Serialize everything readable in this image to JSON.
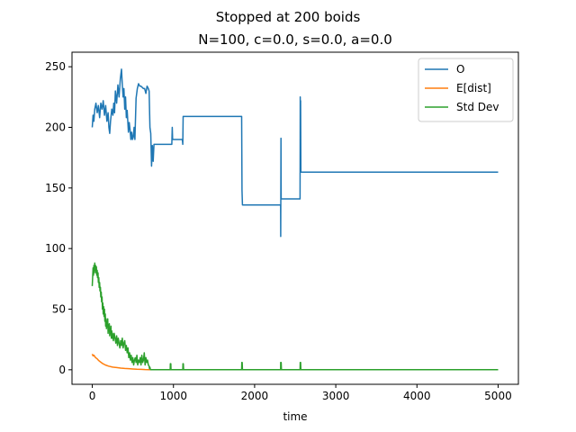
{
  "figure": {
    "suptitle": "Stopped at 200 boids",
    "title": "N=100, c=0.0, s=0.0, a=0.0"
  },
  "chart_data": {
    "type": "line",
    "title": "N=100, c=0.0, s=0.0, a=0.0",
    "xlabel": "time",
    "ylabel": "",
    "xlim": [
      -250,
      5250
    ],
    "ylim": [
      -12,
      262
    ],
    "xticks": [
      0,
      1000,
      2000,
      3000,
      4000,
      5000
    ],
    "yticks": [
      0,
      50,
      100,
      150,
      200,
      250
    ],
    "grid": false,
    "legend_position": "top-right",
    "series": [
      {
        "name": "O",
        "color": "#1f77b4",
        "x": [
          0,
          10,
          20,
          30,
          45,
          60,
          75,
          90,
          105,
          120,
          135,
          150,
          165,
          180,
          195,
          205,
          215,
          225,
          240,
          255,
          265,
          275,
          285,
          300,
          315,
          330,
          345,
          360,
          370,
          380,
          390,
          400,
          410,
          420,
          430,
          445,
          455,
          465,
          475,
          485,
          495,
          505,
          515,
          525,
          540,
          555,
          570,
          585,
          600,
          615,
          630,
          645,
          660,
          675,
          690,
          700,
          710,
          720,
          730,
          740,
          750,
          760,
          770,
          780,
          790,
          800,
          980,
          985,
          990,
          995,
          1000,
          1110,
          1115,
          1120,
          1125,
          1130,
          1840,
          1845,
          1850,
          1855,
          1860,
          2320,
          2322,
          2325,
          2327,
          2330,
          2340,
          2345,
          2560,
          2562,
          2565,
          2567,
          2570,
          2575,
          2580,
          5000
        ],
        "y": [
          200,
          210,
          205,
          215,
          220,
          212,
          218,
          208,
          220,
          215,
          222,
          210,
          218,
          205,
          212,
          200,
          195,
          205,
          215,
          210,
          220,
          212,
          230,
          220,
          235,
          225,
          240,
          248,
          235,
          225,
          232,
          215,
          225,
          208,
          214,
          196,
          204,
          198,
          190,
          196,
          190,
          192,
          200,
          190,
          224,
          232,
          236,
          234,
          234,
          233,
          232,
          232,
          228,
          234,
          232,
          230,
          200,
          195,
          168,
          185,
          172,
          186,
          186,
          186,
          186,
          186,
          186,
          200,
          190,
          190,
          190,
          190,
          186,
          209,
          209,
          209,
          209,
          148,
          136,
          136,
          136,
          136,
          110,
          191,
          141,
          141,
          141,
          141,
          141,
          225,
          165,
          222,
          163,
          163,
          163,
          163
        ]
      },
      {
        "name": "E[dist]",
        "color": "#ff7f0e",
        "x": [
          0,
          10,
          20,
          40,
          60,
          80,
          100,
          130,
          160,
          200,
          250,
          300,
          350,
          400,
          450,
          500,
          550,
          600,
          650,
          700,
          720,
          750,
          800,
          1000,
          2000,
          3000,
          4000,
          5000
        ],
        "y": [
          13,
          11.5,
          12,
          10,
          9,
          7.5,
          6.5,
          5,
          4,
          3,
          2.2,
          1.8,
          1.4,
          1.1,
          0.9,
          0.6,
          0.4,
          0.3,
          0.2,
          0.1,
          0.05,
          0,
          0,
          0,
          0,
          0,
          0,
          0
        ]
      },
      {
        "name": "Std Dev",
        "color": "#2ca02c",
        "x": [
          0,
          10,
          15,
          20,
          25,
          30,
          35,
          40,
          45,
          50,
          55,
          60,
          65,
          70,
          75,
          80,
          85,
          90,
          95,
          100,
          105,
          110,
          115,
          120,
          125,
          130,
          135,
          140,
          145,
          150,
          155,
          160,
          165,
          170,
          175,
          180,
          185,
          190,
          195,
          200,
          205,
          210,
          215,
          220,
          225,
          230,
          235,
          240,
          245,
          250,
          260,
          270,
          280,
          290,
          300,
          310,
          320,
          330,
          340,
          350,
          360,
          370,
          380,
          390,
          400,
          410,
          420,
          430,
          440,
          450,
          460,
          470,
          480,
          490,
          500,
          510,
          520,
          530,
          540,
          550,
          560,
          570,
          580,
          590,
          600,
          610,
          620,
          630,
          640,
          650,
          660,
          670,
          680,
          690,
          700,
          705,
          710,
          715,
          720,
          725,
          730,
          735,
          740,
          960,
          962,
          965,
          967,
          970,
          1115,
          1117,
          1120,
          1122,
          1125,
          1840,
          1842,
          1845,
          1847,
          1850,
          2320,
          2322,
          2325,
          2327,
          2330,
          2560,
          2562,
          2565,
          2567,
          2570,
          5000
        ],
        "y": [
          69,
          84,
          78,
          86,
          80,
          88,
          82,
          86,
          80,
          85,
          78,
          82,
          76,
          80,
          72,
          76,
          68,
          72,
          65,
          68,
          60,
          64,
          56,
          60,
          50,
          55,
          46,
          52,
          44,
          50,
          40,
          46,
          36,
          42,
          34,
          40,
          36,
          42,
          30,
          37,
          33,
          38,
          28,
          34,
          30,
          36,
          26,
          32,
          26,
          30,
          24,
          30,
          26,
          22,
          28,
          20,
          26,
          22,
          18,
          24,
          20,
          26,
          18,
          22,
          24,
          16,
          20,
          14,
          18,
          10,
          14,
          8,
          12,
          6,
          10,
          4,
          8,
          10,
          6,
          12,
          4,
          8,
          6,
          10,
          4,
          12,
          6,
          8,
          14,
          4,
          10,
          6,
          8,
          4,
          3,
          1,
          2,
          0.5,
          0,
          0,
          0,
          0,
          0,
          0,
          5,
          0,
          5,
          0,
          0,
          5,
          0,
          5,
          0,
          0,
          6,
          0,
          6,
          0,
          0,
          6,
          0,
          6,
          0,
          0,
          6,
          0,
          6,
          0,
          0
        ]
      }
    ]
  }
}
